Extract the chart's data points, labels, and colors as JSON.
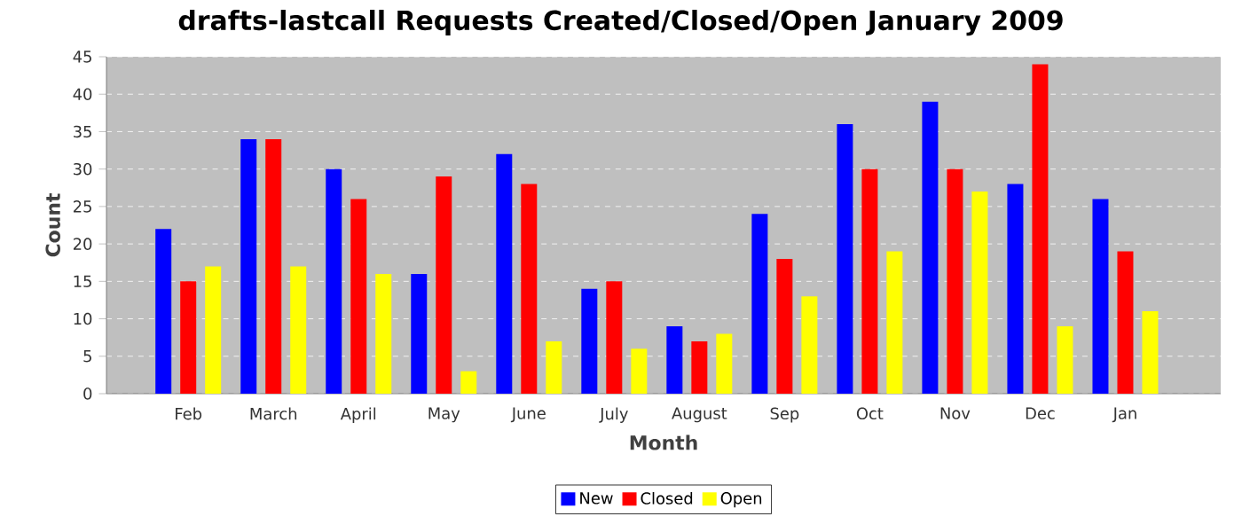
{
  "chart_data": {
    "type": "bar",
    "title": "drafts-lastcall Requests Created/Closed/Open January 2009",
    "xlabel": "Month",
    "ylabel": "Count",
    "categories": [
      "Feb",
      "March",
      "April",
      "May",
      "June",
      "July",
      "August",
      "Sep",
      "Oct",
      "Nov",
      "Dec",
      "Jan"
    ],
    "series": [
      {
        "name": "New",
        "color": "#0000ff",
        "values": [
          22,
          34,
          30,
          16,
          32,
          14,
          9,
          24,
          36,
          39,
          28,
          26
        ]
      },
      {
        "name": "Closed",
        "color": "#ff0000",
        "values": [
          15,
          34,
          26,
          29,
          28,
          15,
          7,
          18,
          30,
          30,
          44,
          19
        ]
      },
      {
        "name": "Open",
        "color": "#ffff00",
        "values": [
          17,
          17,
          16,
          3,
          7,
          6,
          8,
          13,
          19,
          27,
          9,
          11
        ]
      }
    ],
    "ylim": [
      0,
      45
    ],
    "yticks": [
      0,
      5,
      10,
      15,
      20,
      25,
      30,
      35,
      40,
      45
    ],
    "grid": "y",
    "legend": "bottom"
  }
}
